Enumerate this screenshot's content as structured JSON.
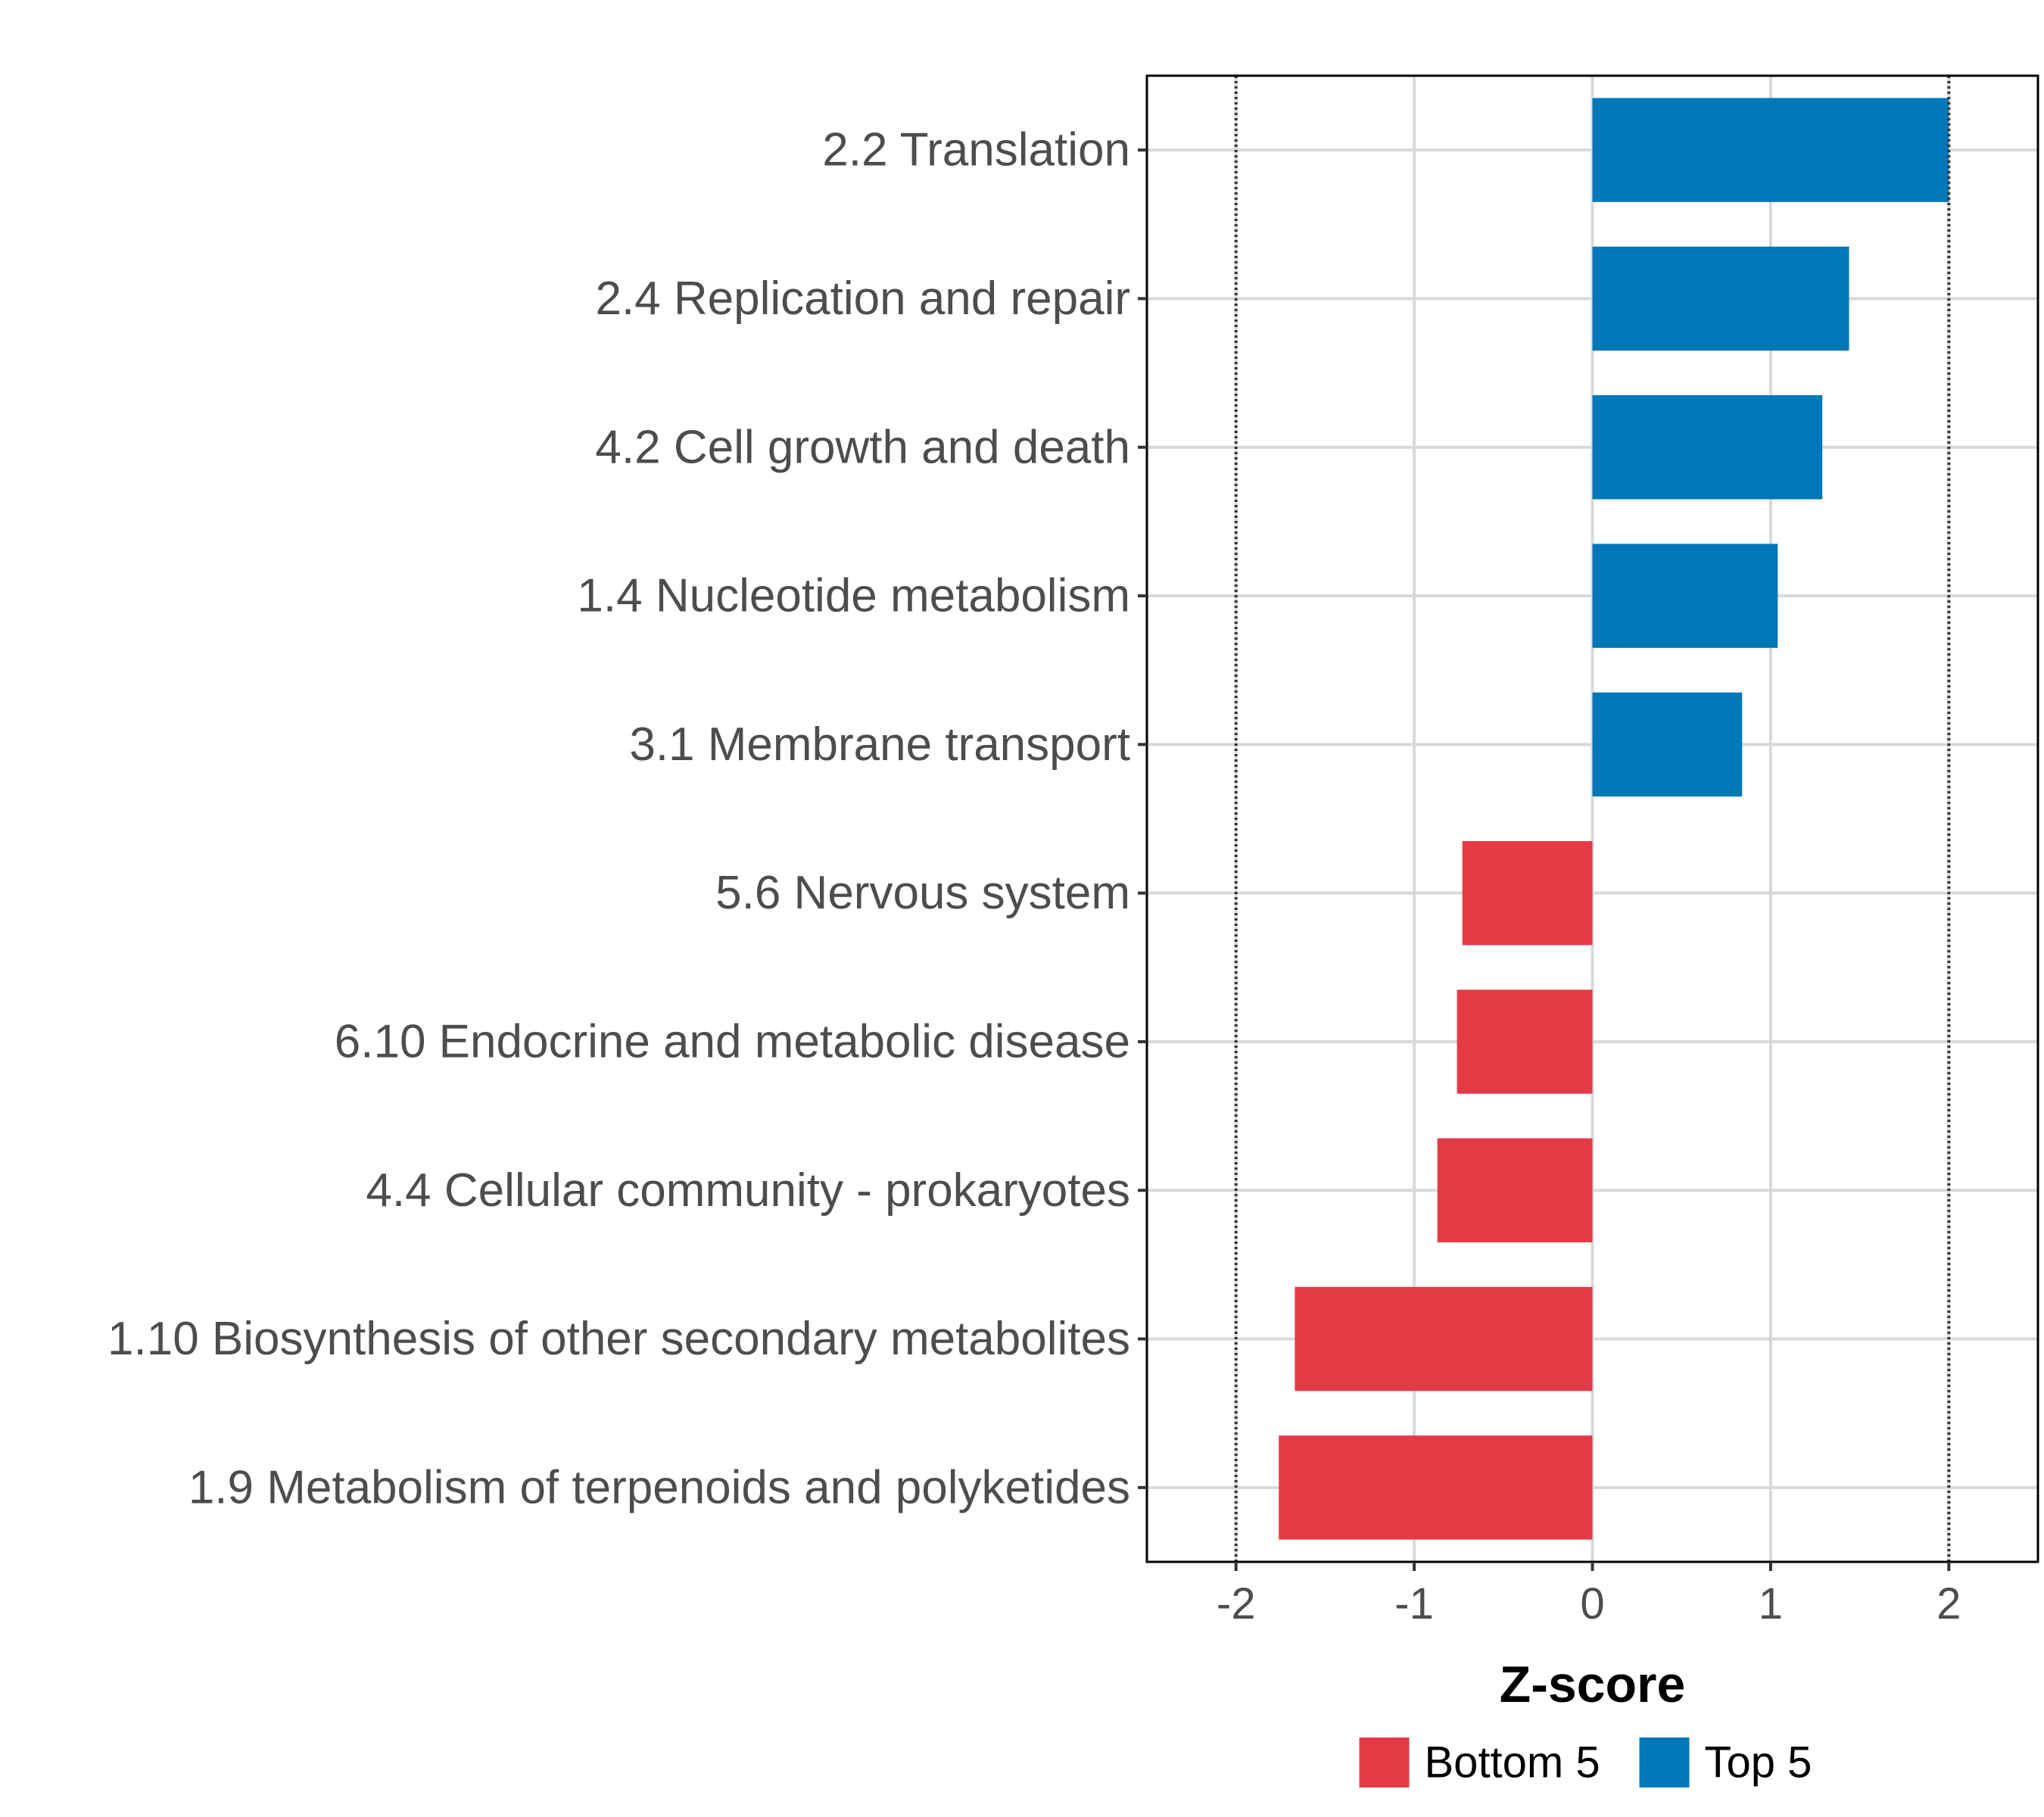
{
  "chart_data": {
    "type": "bar",
    "orientation": "horizontal",
    "categories": [
      "2.2 Translation",
      "2.4 Replication and repair",
      "4.2 Cell growth and death",
      "1.4 Nucleotide metabolism",
      "3.1 Membrane transport",
      "5.6 Nervous system",
      "6.10 Endocrine and metabolic disease",
      "4.4 Cellular community - prokaryotes",
      "1.10 Biosynthesis of other secondary metabolites",
      "1.9 Metabolism of terpenoids and polyketides"
    ],
    "values": [
      2.0,
      1.44,
      1.29,
      1.04,
      0.84,
      -0.73,
      -0.76,
      -0.87,
      -1.67,
      -1.76
    ],
    "groups": [
      "Top 5",
      "Top 5",
      "Top 5",
      "Top 5",
      "Top 5",
      "Bottom 5",
      "Bottom 5",
      "Bottom 5",
      "Bottom 5",
      "Bottom 5"
    ],
    "xlabel": "Z-score",
    "ylabel": "",
    "xlim": [
      -2.5,
      2.5
    ],
    "xticks": [
      -2,
      -1,
      0,
      1,
      2
    ],
    "xtick_labels": [
      "-2",
      "-1",
      "0",
      "1",
      "2"
    ],
    "reference_lines": [
      -2,
      2
    ],
    "grid": true,
    "legend": {
      "position": "bottom",
      "entries": [
        {
          "label": "Bottom 5",
          "color": "#e63946"
        },
        {
          "label": "Top 5",
          "color": "#0077b6"
        }
      ]
    }
  }
}
